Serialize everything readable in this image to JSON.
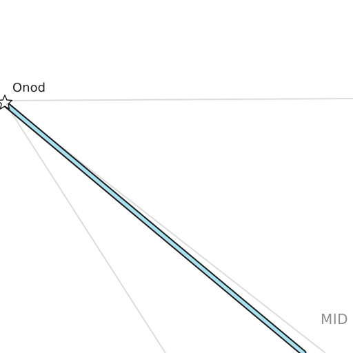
{
  "map": {
    "place_label": "Onod",
    "region_label": "MID",
    "marker_icon": "star-outline-icon",
    "colors": {
      "background": "#ffffff",
      "road_light": "#dcdcdc",
      "route_fill": "#a8e2f0",
      "route_casing": "#1b1b1b",
      "place_label": "#222222",
      "region_label": "#8c8c8c"
    }
  }
}
